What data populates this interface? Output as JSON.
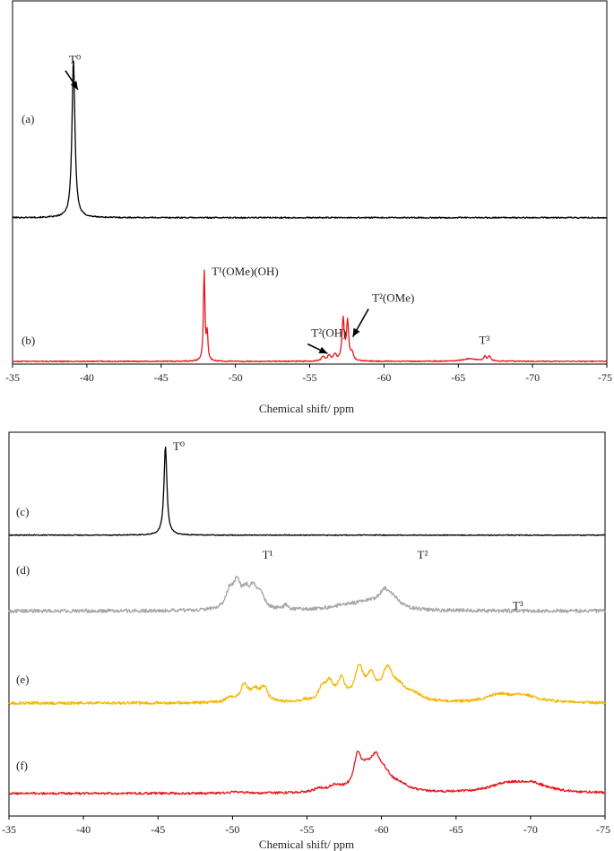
{
  "chart_data": [
    {
      "type": "line",
      "xlabel": "Chemical shift/ ppm",
      "xlim": [
        -35,
        -75
      ],
      "xticks": [
        "-35",
        "-40",
        "-45",
        "-50",
        "-55",
        "-60",
        "-65",
        "-70",
        "-75"
      ],
      "series": [
        {
          "panel": "(a)",
          "color": "#000000",
          "offset": 0.82,
          "scale": 0.9,
          "noise": 0.004,
          "peaks": [
            {
              "x": -39.1,
              "h": 1.0,
              "w": 0.12
            }
          ]
        },
        {
          "panel": "(b)",
          "color": "#e8151b",
          "offset": 0.0,
          "scale": 0.52,
          "noise": 0.006,
          "peaks": [
            {
              "x": -47.9,
              "h": 1.0,
              "w": 0.06
            },
            {
              "x": -48.1,
              "h": 0.29,
              "w": 0.06
            },
            {
              "x": -55.9,
              "h": 0.05,
              "w": 0.12
            },
            {
              "x": -56.3,
              "h": 0.06,
              "w": 0.12
            },
            {
              "x": -56.7,
              "h": 0.07,
              "w": 0.12
            },
            {
              "x": -57.25,
              "h": 0.46,
              "w": 0.09
            },
            {
              "x": -57.55,
              "h": 0.42,
              "w": 0.09
            },
            {
              "x": -57.85,
              "h": 0.08,
              "w": 0.1
            },
            {
              "x": -65.8,
              "h": 0.03,
              "w": 0.6
            },
            {
              "x": -66.8,
              "h": 0.05,
              "w": 0.1
            },
            {
              "x": -67.1,
              "h": 0.05,
              "w": 0.1
            }
          ]
        }
      ],
      "annotations": [
        {
          "text": "T⁰",
          "x": -38.8,
          "y": 1.7,
          "arrow_to": [
            -39.4,
            1.55
          ]
        },
        {
          "text": "T¹(OMe)(OH)",
          "x": -48.4,
          "y": 0.49
        },
        {
          "text": "T²(OMe)",
          "x": -59.2,
          "y": 0.34,
          "arrow_to": [
            -57.9,
            0.14
          ]
        },
        {
          "text": "T²(OH)",
          "x": -55.1,
          "y": 0.14,
          "arrow_to": [
            -56.2,
            0.045
          ]
        },
        {
          "text": "T³",
          "x": -66.4,
          "y": 0.1
        }
      ]
    },
    {
      "type": "line",
      "xlabel": "Chemical shift/ ppm",
      "xlim": [
        -35,
        -75
      ],
      "xticks": [
        "-35",
        "-40",
        "-45",
        "-50",
        "-55",
        "-60",
        "-65",
        "-70",
        "-75"
      ],
      "series": [
        {
          "panel": "(c)",
          "color": "#000000",
          "offset": 1.53,
          "scale": 0.49,
          "noise": 0.005,
          "peaks": [
            {
              "x": -45.5,
              "h": 1.0,
              "w": 0.12
            }
          ]
        },
        {
          "panel": "(d)",
          "color": "#a6a6a6",
          "offset": 1.11,
          "scale": 0.17,
          "noise": 0.06,
          "peaks": [
            {
              "x": -49.8,
              "h": 0.55,
              "w": 0.3
            },
            {
              "x": -50.3,
              "h": 0.8,
              "w": 0.3
            },
            {
              "x": -50.9,
              "h": 0.5,
              "w": 0.3
            },
            {
              "x": -51.4,
              "h": 0.6,
              "w": 0.3
            },
            {
              "x": -51.9,
              "h": 0.4,
              "w": 0.3
            },
            {
              "x": -53.6,
              "h": 0.15,
              "w": 0.2
            },
            {
              "x": -57.5,
              "h": 0.12,
              "w": 1.2
            },
            {
              "x": -59.2,
              "h": 0.25,
              "w": 1.2
            },
            {
              "x": -60.2,
              "h": 0.45,
              "w": 0.4
            },
            {
              "x": -60.8,
              "h": 0.3,
              "w": 0.5
            }
          ]
        },
        {
          "panel": "(e)",
          "color": "#f7b500",
          "offset": 0.6,
          "scale": 0.13,
          "noise": 0.06,
          "peaks": [
            {
              "x": -49.8,
              "h": 0.2,
              "w": 0.3
            },
            {
              "x": -50.8,
              "h": 0.75,
              "w": 0.3
            },
            {
              "x": -51.5,
              "h": 0.45,
              "w": 0.3
            },
            {
              "x": -52.1,
              "h": 0.6,
              "w": 0.3
            },
            {
              "x": -54.8,
              "h": 0.1,
              "w": 0.2
            },
            {
              "x": -56.0,
              "h": 0.5,
              "w": 0.3
            },
            {
              "x": -56.5,
              "h": 0.75,
              "w": 0.3
            },
            {
              "x": -57.3,
              "h": 0.85,
              "w": 0.3
            },
            {
              "x": -58.5,
              "h": 1.35,
              "w": 0.35
            },
            {
              "x": -59.3,
              "h": 0.9,
              "w": 0.35
            },
            {
              "x": -60.4,
              "h": 1.25,
              "w": 0.45
            },
            {
              "x": -61.2,
              "h": 0.5,
              "w": 0.6
            },
            {
              "x": -62.2,
              "h": 0.25,
              "w": 0.6
            },
            {
              "x": -67.8,
              "h": 0.3,
              "w": 0.9
            },
            {
              "x": -69.5,
              "h": 0.3,
              "w": 1.2
            }
          ]
        },
        {
          "panel": "(f)",
          "color": "#e8151b",
          "offset": 0.1,
          "scale": 0.13,
          "noise": 0.05,
          "peaks": [
            {
              "x": -50.3,
              "h": 0.06,
              "w": 0.5
            },
            {
              "x": -55.8,
              "h": 0.15,
              "w": 0.4
            },
            {
              "x": -56.9,
              "h": 0.25,
              "w": 0.5
            },
            {
              "x": -58.4,
              "h": 1.3,
              "w": 0.3
            },
            {
              "x": -59.0,
              "h": 0.7,
              "w": 0.5
            },
            {
              "x": -59.6,
              "h": 1.0,
              "w": 0.4
            },
            {
              "x": -60.2,
              "h": 0.65,
              "w": 0.6
            },
            {
              "x": -61.3,
              "h": 0.25,
              "w": 0.7
            },
            {
              "x": -68.4,
              "h": 0.35,
              "w": 1.4
            },
            {
              "x": -70.1,
              "h": 0.35,
              "w": 1.3
            }
          ]
        }
      ],
      "annotations": [
        {
          "text": "T⁰",
          "x": -46.0,
          "y": 2.0
        },
        {
          "text": "T¹",
          "x": -52.0,
          "y": 1.4
        },
        {
          "text": "T²",
          "x": -62.4,
          "y": 1.4
        },
        {
          "text": "T³",
          "x": -68.8,
          "y": 1.12
        }
      ]
    }
  ]
}
